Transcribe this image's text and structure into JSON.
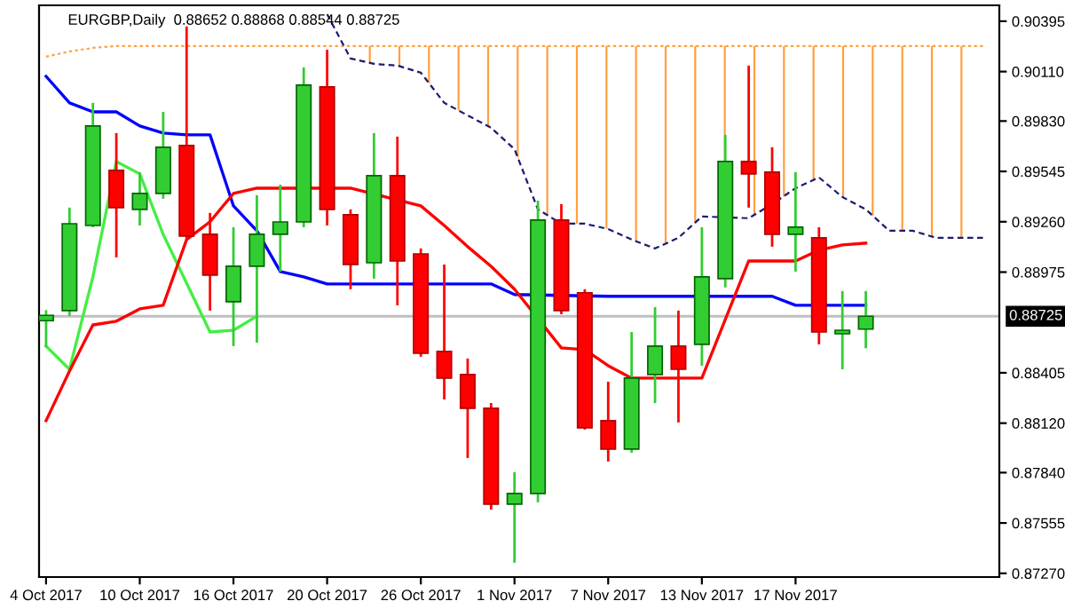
{
  "chart_data": {
    "type": "candlestick",
    "title": "EURGBP,Daily  0.88652 0.88868 0.88544 0.88725",
    "categories": [
      "4 Oct 2017",
      null,
      null,
      null,
      "10 Oct 2017",
      null,
      null,
      null,
      "16 Oct 2017",
      null,
      null,
      null,
      "20 Oct 2017",
      null,
      null,
      null,
      "26 Oct 2017",
      null,
      null,
      null,
      "1 Nov 2017",
      null,
      null,
      null,
      "7 Nov 2017",
      null,
      null,
      null,
      "13 Nov 2017",
      null,
      null,
      null,
      "17 Nov 2017",
      null,
      null,
      null,
      null,
      null,
      null,
      null,
      null
    ],
    "ohlc": [
      [
        0.887,
        0.8876,
        0.8855,
        0.8873
      ],
      [
        0.88757,
        0.8934,
        0.88727,
        0.89249
      ],
      [
        0.89239,
        0.89933,
        0.89229,
        0.89802
      ],
      [
        0.89551,
        0.89762,
        0.89058,
        0.8934
      ],
      [
        0.8933,
        0.89541,
        0.89239,
        0.8942
      ],
      [
        0.8942,
        0.89882,
        0.8939,
        0.89682
      ],
      [
        0.89692,
        0.90365,
        0.89159,
        0.89179
      ],
      [
        0.89189,
        0.8931,
        0.88757,
        0.88958
      ],
      [
        0.88807,
        0.89229,
        0.88556,
        0.89008
      ],
      [
        0.89008,
        0.8941,
        0.88576,
        0.89189
      ],
      [
        0.89189,
        0.8947,
        0.88978,
        0.89259
      ],
      [
        0.89259,
        0.90134,
        0.89229,
        0.90033
      ],
      [
        0.90023,
        0.90234,
        0.89239,
        0.8933
      ],
      [
        0.893,
        0.8933,
        0.88878,
        0.89018
      ],
      [
        0.89028,
        0.89762,
        0.88938,
        0.89521
      ],
      [
        0.89521,
        0.89742,
        0.88787,
        0.89038
      ],
      [
        0.89078,
        0.89109,
        0.88496,
        0.88516
      ],
      [
        0.88526,
        0.89018,
        0.88254,
        0.88375
      ],
      [
        0.88395,
        0.88486,
        0.87923,
        0.88204
      ],
      [
        0.88204,
        0.88234,
        0.87631,
        0.87662
      ],
      [
        0.87662,
        0.87843,
        0.8733,
        0.87722
      ],
      [
        0.87722,
        0.8938,
        0.87672,
        0.8927
      ],
      [
        0.8927,
        0.8936,
        0.88737,
        0.88757
      ],
      [
        0.88858,
        0.88878,
        0.88084,
        0.88094
      ],
      [
        0.88134,
        0.88355,
        0.87903,
        0.87973
      ],
      [
        0.87973,
        0.88636,
        0.87953,
        0.88375
      ],
      [
        0.88395,
        0.88777,
        0.88234,
        0.88556
      ],
      [
        0.88556,
        0.88757,
        0.88124,
        0.88425
      ],
      [
        0.88566,
        0.89229,
        0.88445,
        0.88948
      ],
      [
        0.88938,
        0.89752,
        0.88888,
        0.89601
      ],
      [
        0.89601,
        0.90144,
        0.8934,
        0.89531
      ],
      [
        0.89541,
        0.89682,
        0.89119,
        0.89189
      ],
      [
        0.89189,
        0.89541,
        0.88978,
        0.89229
      ],
      [
        0.89169,
        0.89229,
        0.88566,
        0.88636
      ],
      [
        0.88626,
        0.88868,
        0.88425,
        0.88646
      ],
      [
        0.88652,
        0.88868,
        0.88544,
        0.88725
      ],
      null,
      null,
      null,
      null,
      null
    ],
    "colors": [
      "#32cd32",
      "#32cd32",
      "#32cd32",
      "#ff0000",
      "#32cd32",
      "#32cd32",
      "#ff0000",
      "#ff0000",
      "#32cd32",
      "#32cd32",
      "#32cd32",
      "#32cd32",
      "#ff0000",
      "#ff0000",
      "#32cd32",
      "#ff0000",
      "#ff0000",
      "#ff0000",
      "#ff0000",
      "#ff0000",
      "#32cd32",
      "#32cd32",
      "#ff0000",
      "#ff0000",
      "#ff0000",
      "#32cd32",
      "#32cd32",
      "#ff0000",
      "#32cd32",
      "#32cd32",
      "#ff0000",
      "#ff0000",
      "#32cd32",
      "#ff0000",
      "#32cd32",
      "#32cd32",
      null,
      null,
      null,
      null,
      null
    ],
    "series": [
      {
        "type": "line",
        "color": "#ffa040",
        "line_style": "dotted",
        "values": [
          0.90194,
          0.90224,
          0.90244,
          0.90255,
          0.90255,
          0.90255,
          0.90255,
          0.90255,
          0.90255,
          0.90255,
          0.90255,
          0.90255,
          0.90255,
          0.90255,
          0.90255,
          0.90255,
          0.90255,
          0.90255,
          0.90255,
          0.90255,
          0.90255,
          0.90255,
          0.90255,
          0.90255,
          0.90255,
          0.90255,
          0.90255,
          0.90255,
          0.90255,
          0.90255,
          0.90255,
          0.90255,
          0.90255,
          0.90255,
          0.90255,
          0.90255,
          0.90255,
          0.90255,
          0.90255,
          0.90255,
          0.90255
        ],
        "lower": [
          null,
          null,
          null,
          null,
          null,
          null,
          null,
          null,
          null,
          null,
          null,
          null,
          null,
          0.90184,
          0.90154,
          0.90144,
          0.90104,
          0.89933,
          0.89862,
          0.89792,
          0.89671,
          0.8933,
          0.89249,
          0.89249,
          0.89219,
          0.89159,
          0.89109,
          0.89169,
          0.8929,
          0.8929,
          0.8928,
          0.8936,
          0.8945,
          0.89511,
          0.894,
          0.8933,
          0.89209,
          0.89209,
          0.89169,
          0.89169,
          0.89169
        ],
        "upper": [
          null,
          null,
          null,
          null,
          null,
          null,
          null,
          null,
          null,
          null,
          null,
          null,
          null,
          0.90255,
          0.90255,
          0.90255,
          0.90255,
          0.90255,
          0.90255,
          0.90255,
          0.90255,
          0.90255,
          0.90255,
          0.90255,
          0.90255,
          0.90255,
          0.90255,
          0.90255,
          0.90255,
          0.90255,
          0.90255,
          0.90255,
          0.90255,
          0.90255,
          0.90255,
          0.90255,
          0.90255,
          0.90255,
          0.90255,
          0.90255,
          0.90255
        ]
      },
      {
        "type": "line",
        "color": "#1c1c70",
        "line_style": "dashed",
        "values": [
          null,
          null,
          null,
          null,
          null,
          null,
          null,
          null,
          null,
          null,
          null,
          null,
          0.90435,
          0.90184,
          0.90154,
          0.90144,
          0.90104,
          0.89933,
          0.89862,
          0.89792,
          0.89671,
          0.8933,
          0.89249,
          0.89249,
          0.89219,
          0.89159,
          0.89109,
          0.89169,
          0.8929,
          null,
          0.8928,
          0.8936,
          0.8945,
          0.89511,
          0.894,
          0.8933,
          0.89209,
          0.89209,
          0.89169,
          0.89169,
          0.89169
        ]
      },
      {
        "type": "line",
        "color": "#44ee44",
        "line_style": "solid",
        "values": [
          0.88556,
          0.88425,
          0.88948,
          0.89601,
          0.89531,
          0.89189,
          null,
          0.88636,
          0.88646,
          0.88725,
          null,
          null,
          null,
          null,
          null,
          null,
          null,
          null,
          null,
          null,
          null,
          null,
          null,
          null,
          null,
          null,
          null,
          null,
          null,
          null,
          null,
          null,
          null,
          null,
          null,
          null,
          null,
          null,
          null,
          null,
          null
        ]
      },
      {
        "type": "line",
        "color": "#0000ff",
        "line_style": "solid",
        "values": [
          0.90083,
          0.89933,
          0.89882,
          0.89882,
          0.89802,
          0.89762,
          0.89752,
          0.89752,
          0.8935,
          0.89209,
          0.88978,
          0.88948,
          0.88908,
          0.88908,
          0.88908,
          0.88908,
          null,
          0.88908,
          0.88908,
          0.88908,
          0.88848,
          null,
          null,
          null,
          0.88838,
          0.88838,
          0.88838,
          0.88838,
          null,
          0.88838,
          0.88838,
          0.88838,
          0.88787,
          null,
          0.88787,
          0.88787,
          null,
          null,
          null,
          null,
          null
        ]
      },
      {
        "type": "line",
        "color": "#ff0000",
        "line_style": "solid",
        "values": [
          0.88134,
          0.88415,
          0.88676,
          0.88697,
          0.88767,
          0.88787,
          0.89159,
          0.8926,
          0.8942,
          0.8945,
          0.8945,
          null,
          0.8945,
          0.8945,
          null,
          null,
          0.8935,
          0.89239,
          0.89119,
          0.89008,
          0.88878,
          null,
          0.88546,
          0.88536,
          0.88445,
          0.88375,
          0.88375,
          0.88375,
          0.88375,
          0.88707,
          0.89038,
          0.89038,
          0.89038,
          0.89099,
          0.89129,
          0.89139,
          null,
          null,
          null,
          null,
          null
        ]
      }
    ],
    "ylim": [
      0.87249,
      0.90485
    ],
    "yticks": [
      {
        "value": 0.90395,
        "label": "0.90395"
      },
      {
        "value": 0.9011,
        "label": "0.90110"
      },
      {
        "value": 0.8983,
        "label": "0.89830"
      },
      {
        "value": 0.89545,
        "label": "0.89545"
      },
      {
        "value": 0.8926,
        "label": "0.89260"
      },
      {
        "value": 0.88975,
        "label": "0.88975"
      },
      {
        "value": 0.88405,
        "label": "0.88405"
      },
      {
        "value": 0.8812,
        "label": "0.88120"
      },
      {
        "value": 0.8784,
        "label": "0.87840"
      },
      {
        "value": 0.87555,
        "label": "0.87555"
      },
      {
        "value": 0.8727,
        "label": "0.87270"
      }
    ],
    "ref_lines": [
      {
        "axis": "y",
        "value": 0.88725,
        "label": "0.88725",
        "color": "#c0c0c0"
      }
    ],
    "grid": false,
    "legend": false
  }
}
